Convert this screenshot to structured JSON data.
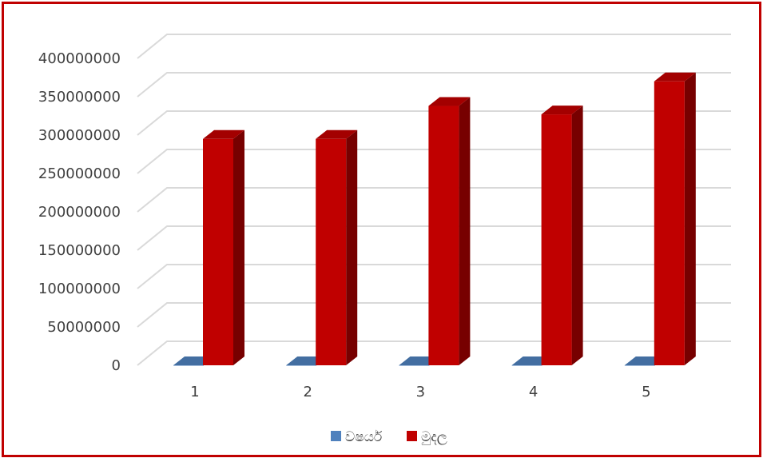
{
  "chart_data": {
    "type": "bar",
    "categories": [
      "1",
      "2",
      "3",
      "4",
      "5"
    ],
    "series": [
      {
        "name": "වෂර්ය",
        "values": [
          2014,
          2015,
          2016,
          2017,
          2018
        ],
        "color": "#4f81bd"
      },
      {
        "name": "මුදල",
        "values": [
          295000000,
          295000000,
          338000000,
          327000000,
          370000000
        ],
        "color": "#c00000"
      }
    ],
    "yticks": [
      "0",
      "50000000",
      "100000000",
      "150000000",
      "200000000",
      "250000000",
      "300000000",
      "350000000",
      "400000000"
    ],
    "ylim": [
      0,
      400000000
    ],
    "grid": true,
    "legend": "bottom",
    "title": "",
    "xlabel": "",
    "ylabel": ""
  }
}
